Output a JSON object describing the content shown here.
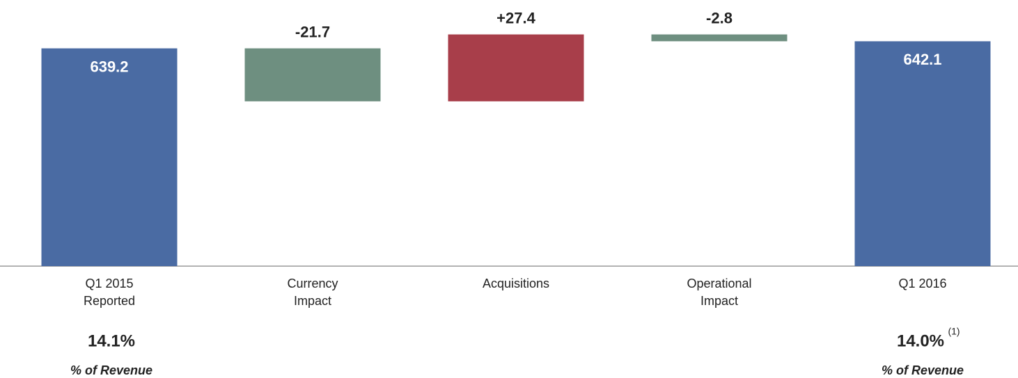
{
  "chart_data": {
    "type": "waterfall",
    "categories": [
      [
        "Q1 2015",
        "Reported"
      ],
      [
        "Currency",
        "Impact"
      ],
      [
        "Acquisitions"
      ],
      [
        "Operational",
        "Impact"
      ],
      [
        "Q1 2016"
      ]
    ],
    "values": [
      639.2,
      -21.7,
      27.4,
      -2.8,
      642.1
    ],
    "value_labels": [
      "639.2",
      "-21.7",
      "+27.4",
      "-2.8",
      "642.1"
    ],
    "totals": [
      true,
      false,
      false,
      false,
      true
    ],
    "colors": [
      "#4a6ba3",
      "#6e8f80",
      "#a83e4a",
      "#6e8f80",
      "#4a6ba3"
    ],
    "ylim": [
      550,
      659
    ],
    "annotations": [
      {
        "text": "14.1%",
        "label": "% of Revenue"
      },
      {
        "text": "14.0%",
        "footnote": "(1)",
        "label": "% of Revenue"
      }
    ]
  }
}
